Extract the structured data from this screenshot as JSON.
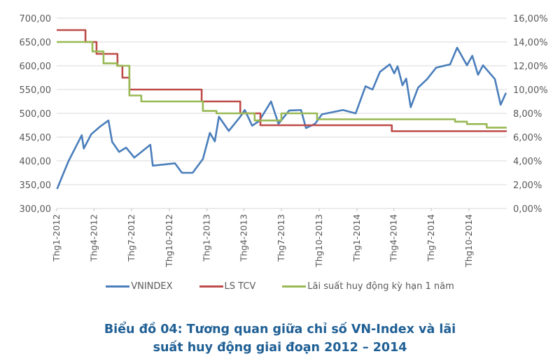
{
  "chart_data": {
    "type": "line",
    "title": "Biểu đồ 04: Tương quan giữa chỉ số VN-Index và lãi suất huy động giai đoạn 2012 – 2014",
    "x_range": [
      "2012-01-01",
      "2014-12-31"
    ],
    "x_ticks": [
      "Thg1-2012",
      "Thg4-2012",
      "Thg7-2012",
      "Thg10-2012",
      "Thg1-2013",
      "Thg4-2013",
      "Thg7-2013",
      "Thg10-2013",
      "Thg1-2014",
      "Thg4-2014",
      "Thg7-2014",
      "Thg10-2014"
    ],
    "x_tick_dates": [
      "2012-01-01",
      "2012-04-01",
      "2012-07-01",
      "2012-10-01",
      "2013-01-01",
      "2013-04-01",
      "2013-07-01",
      "2013-10-01",
      "2014-01-01",
      "2014-04-01",
      "2014-07-01",
      "2014-10-01"
    ],
    "y_left": {
      "range": [
        300,
        700
      ],
      "ticks": [
        "300,00",
        "350,00",
        "400,00",
        "450,00",
        "500,00",
        "550,00",
        "600,00",
        "650,00",
        "700,00"
      ]
    },
    "y_right": {
      "range": [
        0,
        16
      ],
      "ticks": [
        "0,00%",
        "2,00%",
        "4,00%",
        "6,00%",
        "8,00%",
        "10,00%",
        "12,00%",
        "14,00%",
        "16,00%"
      ]
    },
    "grid": true,
    "legend_position": "bottom",
    "series": [
      {
        "name": "VNINDEX",
        "axis": "left",
        "color": "#4a7ebb",
        "style": "line",
        "points": [
          [
            "2012-01-02",
            341
          ],
          [
            "2012-01-16",
            371
          ],
          [
            "2012-01-30",
            400
          ],
          [
            "2012-03-02",
            454
          ],
          [
            "2012-03-07",
            426
          ],
          [
            "2012-03-25",
            456
          ],
          [
            "2012-04-14",
            471
          ],
          [
            "2012-05-06",
            485
          ],
          [
            "2012-05-15",
            440
          ],
          [
            "2012-06-01",
            419
          ],
          [
            "2012-06-18",
            428
          ],
          [
            "2012-07-08",
            407
          ],
          [
            "2012-08-16",
            434
          ],
          [
            "2012-08-22",
            390
          ],
          [
            "2012-10-15",
            395
          ],
          [
            "2012-11-01",
            375
          ],
          [
            "2012-11-27",
            375
          ],
          [
            "2012-12-22",
            404
          ],
          [
            "2013-01-08",
            459
          ],
          [
            "2013-01-20",
            441
          ],
          [
            "2013-01-30",
            493
          ],
          [
            "2013-02-23",
            463
          ],
          [
            "2013-03-23",
            493
          ],
          [
            "2013-04-03",
            507
          ],
          [
            "2013-04-21",
            474
          ],
          [
            "2013-05-08",
            484
          ],
          [
            "2013-06-06",
            525
          ],
          [
            "2013-06-24",
            478
          ],
          [
            "2013-07-20",
            506
          ],
          [
            "2013-08-18",
            507
          ],
          [
            "2013-08-30",
            469
          ],
          [
            "2013-09-21",
            478
          ],
          [
            "2013-10-08",
            498
          ],
          [
            "2013-11-28",
            507
          ],
          [
            "2013-12-29",
            500
          ],
          [
            "2014-01-22",
            557
          ],
          [
            "2014-02-08",
            550
          ],
          [
            "2014-02-26",
            587
          ],
          [
            "2014-03-22",
            603
          ],
          [
            "2014-04-02",
            584
          ],
          [
            "2014-04-10",
            599
          ],
          [
            "2014-04-22",
            559
          ],
          [
            "2014-05-01",
            573
          ],
          [
            "2014-05-12",
            513
          ],
          [
            "2014-05-30",
            554
          ],
          [
            "2014-06-21",
            572
          ],
          [
            "2014-07-13",
            596
          ],
          [
            "2014-08-16",
            603
          ],
          [
            "2014-09-02",
            638
          ],
          [
            "2014-09-26",
            601
          ],
          [
            "2014-10-09",
            621
          ],
          [
            "2014-10-23",
            581
          ],
          [
            "2014-11-04",
            601
          ],
          [
            "2014-12-03",
            572
          ],
          [
            "2014-12-17",
            518
          ],
          [
            "2014-12-30",
            543
          ]
        ]
      },
      {
        "name": "LS TCV",
        "axis": "right",
        "color": "#be4b48",
        "style": "step",
        "points": [
          [
            "2012-01-01",
            15
          ],
          [
            "2012-03-11",
            14
          ],
          [
            "2012-04-07",
            13
          ],
          [
            "2012-05-28",
            12
          ],
          [
            "2012-06-09",
            11
          ],
          [
            "2012-06-26",
            10
          ],
          [
            "2012-12-19",
            9
          ],
          [
            "2013-03-23",
            8
          ],
          [
            "2013-05-11",
            7
          ],
          [
            "2014-03-27",
            6.5
          ]
        ]
      },
      {
        "name": "Lãi suất huy động kỳ hạn 1 năm",
        "axis": "right",
        "color": "#98b954",
        "style": "step",
        "points": [
          [
            "2012-01-01",
            14
          ],
          [
            "2012-03-28",
            13.2
          ],
          [
            "2012-04-24",
            12.2
          ],
          [
            "2012-05-27",
            12
          ],
          [
            "2012-06-26",
            9.5
          ],
          [
            "2012-07-25",
            9
          ],
          [
            "2012-12-22",
            8.2
          ],
          [
            "2013-01-24",
            8
          ],
          [
            "2013-04-27",
            7.4
          ],
          [
            "2013-07-01",
            8
          ],
          [
            "2013-09-26",
            7.5
          ],
          [
            "2014-08-28",
            7.3
          ],
          [
            "2014-09-26",
            7.1
          ],
          [
            "2014-11-13",
            6.8
          ]
        ]
      }
    ]
  }
}
